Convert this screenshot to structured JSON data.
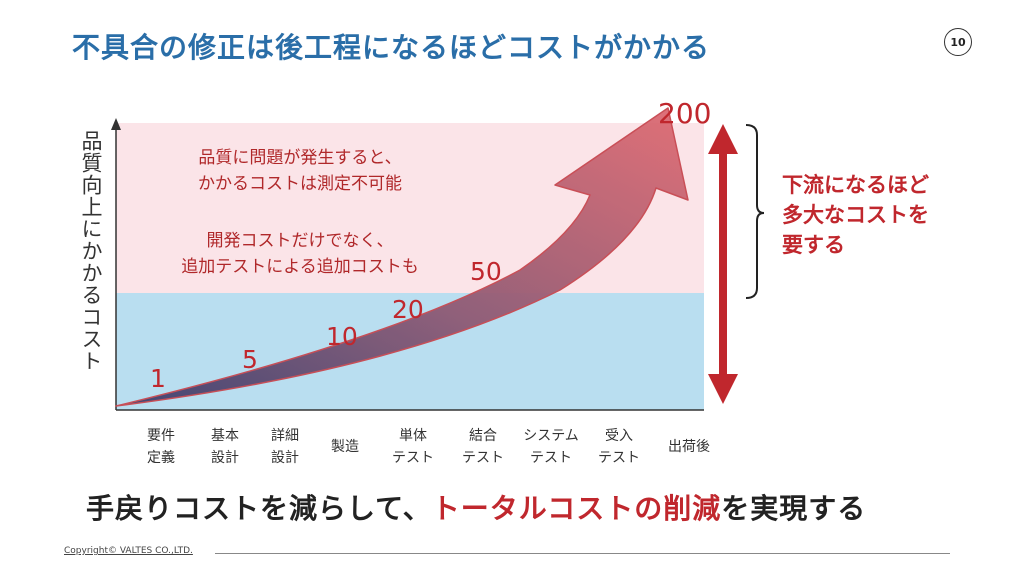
{
  "title": "不具合の修正は後工程になるほどコストがかかる",
  "page_number": "10",
  "y_axis_label": "品質向上にかかるコスト",
  "notes": {
    "note1_line1": "品質に問題が発生すると、",
    "note1_line2": "かかるコストは測定不可能",
    "note2_line1": "開発コストだけでなく、",
    "note2_line2": "追加テストによる追加コストも"
  },
  "cost_labels": [
    "1",
    "5",
    "10",
    "20",
    "50",
    "200"
  ],
  "stages": [
    {
      "line1": "要件",
      "line2": "定義"
    },
    {
      "line1": "基本",
      "line2": "設計"
    },
    {
      "line1": "詳細",
      "line2": "設計"
    },
    {
      "line1": "製造",
      "line2": ""
    },
    {
      "line1": "単体",
      "line2": "テスト"
    },
    {
      "line1": "結合",
      "line2": "テスト"
    },
    {
      "line1": "システム",
      "line2": "テスト"
    },
    {
      "line1": "受入",
      "line2": "テスト"
    },
    {
      "line1": "出荷後",
      "line2": ""
    }
  ],
  "right_note": {
    "line1": "下流になるほど",
    "line2": "多大なコストを",
    "line3": "要する"
  },
  "bottom_message": {
    "part1": "手戻りコストを減らして、",
    "highlight": "トータルコストの削減",
    "part2": "を実現する"
  },
  "copyright": "Copyright© VALTES CO.,LTD.",
  "colors": {
    "title": "#2a6ea8",
    "accent_red": "#c0272d",
    "pink_zone": "#fbe4e8",
    "blue_zone": "#b9def0"
  }
}
